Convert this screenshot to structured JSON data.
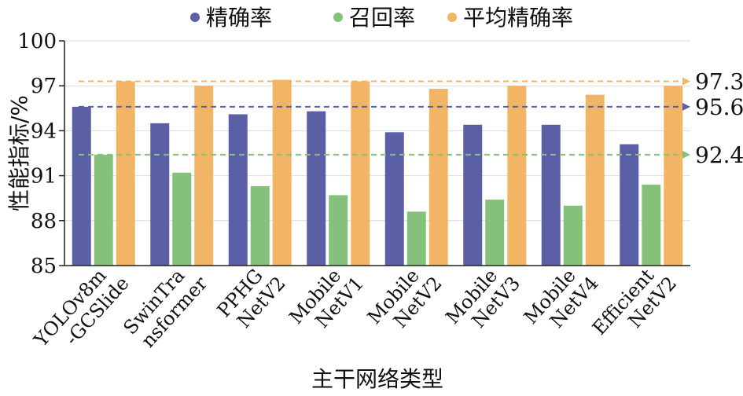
{
  "chart_data": {
    "type": "bar",
    "title": "",
    "xlabel": "主干网络类型",
    "ylabel": "性能指标/%",
    "ylim": [
      85,
      100
    ],
    "yticks": [
      85,
      88,
      91,
      94,
      97,
      100
    ],
    "grid": true,
    "legend_position": "top",
    "categories": [
      [
        "YOLOv8m",
        "-GCSlide"
      ],
      [
        "SwinTra",
        "nsformer"
      ],
      [
        "PPHG",
        "NetV2"
      ],
      [
        "Mobile",
        "NetV1"
      ],
      [
        "Mobile",
        "NetV2"
      ],
      [
        "Mobile",
        "NetV3"
      ],
      [
        "Mobile",
        "NetV4"
      ],
      [
        "Efficient",
        "NetV2"
      ]
    ],
    "series": [
      {
        "name": "精确率",
        "color": "#5b5fa6",
        "values": [
          95.6,
          94.5,
          95.1,
          95.3,
          93.9,
          94.4,
          94.4,
          93.1
        ]
      },
      {
        "name": "召回率",
        "color": "#86c17b",
        "values": [
          92.4,
          91.2,
          90.3,
          89.7,
          88.6,
          89.4,
          89.0,
          90.4
        ]
      },
      {
        "name": "平均精确率",
        "color": "#f2b565",
        "values": [
          97.3,
          97.0,
          97.4,
          97.3,
          96.8,
          97.0,
          96.4,
          97.0
        ]
      }
    ],
    "reference_lines": [
      {
        "value": 97.3,
        "label": "97.3",
        "color": "#f2b565"
      },
      {
        "value": 95.6,
        "label": "95.6",
        "color": "#5b5fa6"
      },
      {
        "value": 92.4,
        "label": "92.4",
        "color": "#86c17b"
      }
    ]
  }
}
